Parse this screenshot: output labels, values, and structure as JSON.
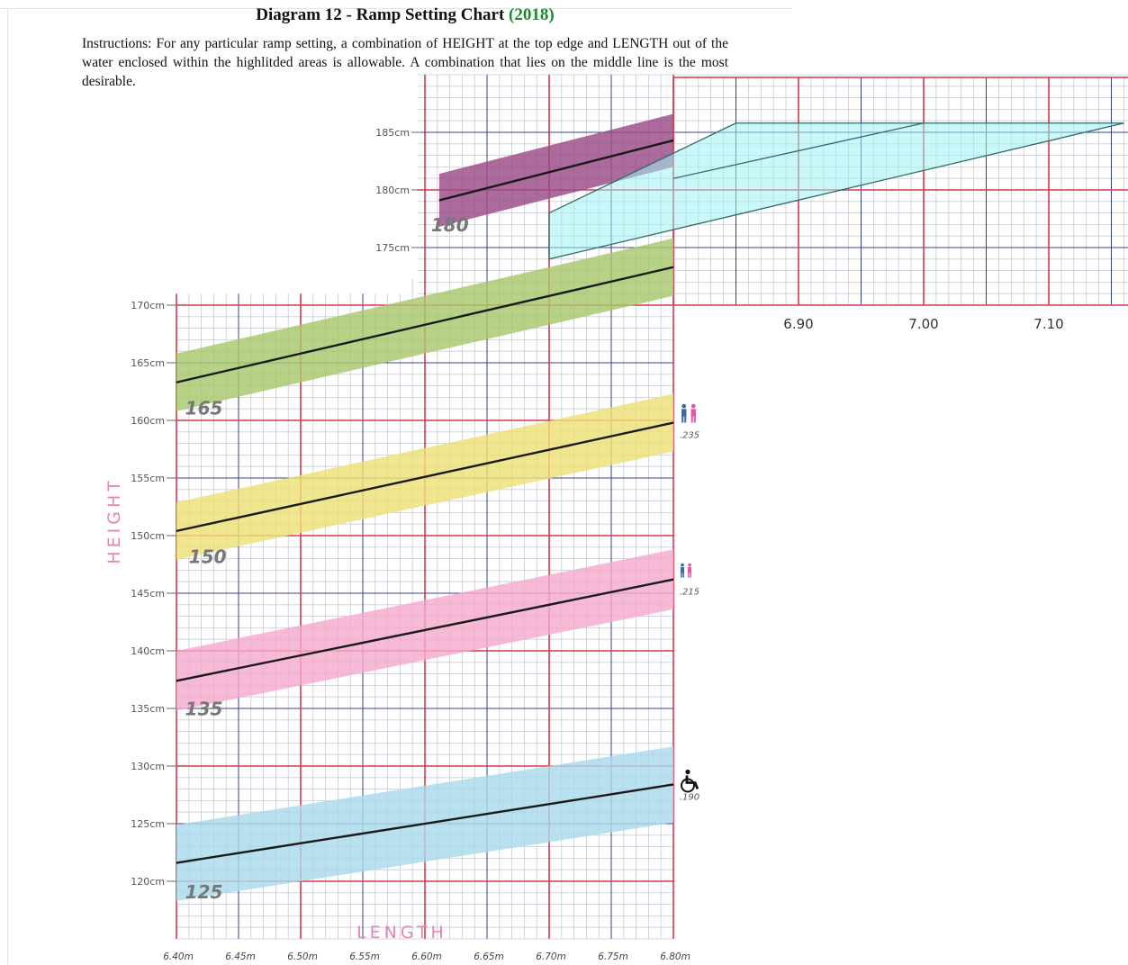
{
  "header": {
    "title": "Diagram 12 - Ramp Setting Chart",
    "year": "(2018)",
    "instructions": "Instructions: For any particular ramp setting, a combination of HEIGHT at the top edge and LENGTH out of the water enclosed within the highlitded areas is allowable. A combination that lies on the middle line is the most desirable."
  },
  "colors": {
    "major_grid": "#d8394a",
    "mid_grid": "#3a3f8f",
    "minor_grid": "#c9c9d6",
    "year_text": "#1e8a2e",
    "axis_title": "#e586b5"
  },
  "chart_data": {
    "type": "line",
    "xlabel": "LENGTH",
    "ylabel": "HEIGHT",
    "xlim": [
      6.4,
      6.8
    ],
    "ylim": [
      115,
      190
    ],
    "x_ticks": [
      "6.40m",
      "6.45m",
      "6.50m",
      "6.55m",
      "6.60m",
      "6.65m",
      "6.70m",
      "6.75m",
      "6.80m"
    ],
    "y_ticks": [
      "120cm",
      "125cm",
      "130cm",
      "135cm",
      "140cm",
      "145cm",
      "150cm",
      "155cm",
      "160cm",
      "165cm",
      "170cm",
      "175cm",
      "180cm",
      "185cm"
    ],
    "zoom_x_ticks": [
      "6.90",
      "7.00",
      "7.10"
    ],
    "grid": true,
    "series": [
      {
        "name": "125",
        "color": "#a9d9ec",
        "x": [
          6.4,
          6.8
        ],
        "y": [
          121.6,
          128.4
        ],
        "band_halfwidth": 3.3,
        "icon": "wheelchair-icon",
        "icon_value": ".190",
        "label_pos": [
          6.407,
          118.5
        ]
      },
      {
        "name": "135",
        "color": "#f4a9cd",
        "x": [
          6.4,
          6.8
        ],
        "y": [
          137.4,
          146.2
        ],
        "band_halfwidth": 2.6,
        "icon": "family-icon-small",
        "icon_value": ".215",
        "label_pos": [
          6.407,
          134.4
        ]
      },
      {
        "name": "150",
        "color": "#ede077",
        "x": [
          6.4,
          6.8
        ],
        "y": [
          150.4,
          159.8
        ],
        "band_halfwidth": 2.5,
        "icon": "family-icon",
        "icon_value": ".235",
        "label_pos": [
          6.41,
          147.6
        ]
      },
      {
        "name": "165",
        "color": "#a7c86b",
        "x": [
          6.4,
          6.8
        ],
        "y": [
          163.3,
          173.3
        ],
        "band_halfwidth": 2.5,
        "label_pos": [
          6.407,
          160.5
        ]
      },
      {
        "name": "180",
        "color": "#9a4a87",
        "x": [
          6.6115,
          6.8
        ],
        "y": [
          179.1,
          184.3
        ],
        "band_halfwidth": 2.3,
        "label_pos": [
          6.605,
          176.4
        ]
      }
    ],
    "extension": {
      "xlim": [
        6.8,
        7.17
      ],
      "ylim": [
        170,
        190
      ],
      "shaded_color": "#9ff2f2",
      "shaded_polygon": [
        [
          6.7,
          174.0
        ],
        [
          6.7,
          178.0
        ],
        [
          6.85,
          185.8
        ],
        [
          7.16,
          185.8
        ]
      ],
      "lines": [
        [
          [
            6.7,
            178.0
          ],
          [
            6.85,
            185.8
          ]
        ],
        [
          [
            6.7,
            174.0
          ],
          [
            7.16,
            185.8
          ]
        ],
        [
          [
            6.8,
            181.0
          ],
          [
            7.0,
            185.8
          ]
        ],
        [
          [
            6.85,
            185.8
          ],
          [
            7.16,
            185.8
          ]
        ]
      ]
    }
  }
}
